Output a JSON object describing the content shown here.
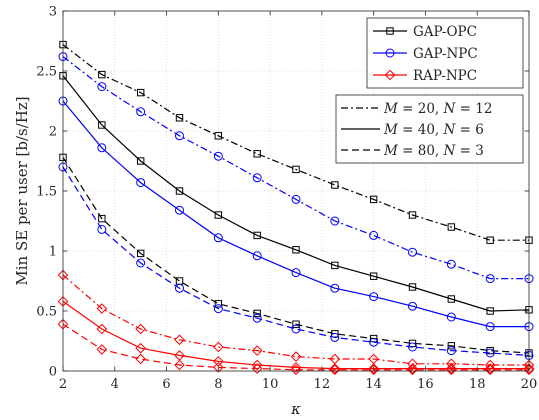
{
  "chart_data": {
    "type": "line",
    "title": "",
    "xlabel": "κ",
    "ylabel": "Min SE per user [b/s/Hz]",
    "xlim": [
      2,
      20
    ],
    "ylim": [
      0,
      3
    ],
    "xticks": [
      2,
      4,
      6,
      8,
      10,
      12,
      14,
      16,
      18,
      20
    ],
    "yticks": [
      0,
      0.5,
      1,
      1.5,
      2,
      2.5,
      3
    ],
    "xtick_labels": [
      "2",
      "4",
      "6",
      "8",
      "10",
      "12",
      "14",
      "16",
      "18",
      "20"
    ],
    "ytick_labels": [
      "0",
      "0.5",
      "1",
      "1.5",
      "2",
      "2.5",
      "3"
    ],
    "grid": true,
    "x": [
      2,
      3.5,
      5,
      6.5,
      8,
      9.5,
      11,
      12.5,
      14,
      15.5,
      17,
      18.5,
      20
    ],
    "schemes": [
      {
        "name": "GAP-OPC",
        "color": "#000000",
        "marker": "square"
      },
      {
        "name": "GAP-NPC",
        "color": "#0000ff",
        "marker": "circle"
      },
      {
        "name": "RAP-NPC",
        "color": "#ff0000",
        "marker": "diamond"
      }
    ],
    "configs": [
      {
        "name": "M = 20, N = 12",
        "m": "20",
        "n": "12",
        "dash": "dashdot"
      },
      {
        "name": "M = 40, N = 6",
        "m": "40",
        "n": "6",
        "dash": "solid"
      },
      {
        "name": "M = 80, N = 3",
        "m": "80",
        "n": "3",
        "dash": "dashed"
      }
    ],
    "legend_placement": "top-right",
    "series": [
      {
        "scheme": "GAP-OPC",
        "config": "M = 20, N = 12",
        "values": [
          2.72,
          2.47,
          2.32,
          2.11,
          1.96,
          1.81,
          1.68,
          1.55,
          1.43,
          1.3,
          1.2,
          1.09,
          1.09
        ]
      },
      {
        "scheme": "GAP-OPC",
        "config": "M = 40, N = 6",
        "values": [
          2.46,
          2.05,
          1.75,
          1.5,
          1.3,
          1.13,
          1.01,
          0.88,
          0.79,
          0.7,
          0.6,
          0.5,
          0.51
        ]
      },
      {
        "scheme": "GAP-OPC",
        "config": "M = 80, N = 3",
        "values": [
          1.78,
          1.27,
          0.98,
          0.75,
          0.56,
          0.48,
          0.39,
          0.31,
          0.27,
          0.23,
          0.21,
          0.17,
          0.15
        ]
      },
      {
        "scheme": "GAP-NPC",
        "config": "M = 20, N = 12",
        "values": [
          2.62,
          2.37,
          2.16,
          1.96,
          1.79,
          1.61,
          1.43,
          1.25,
          1.13,
          0.99,
          0.89,
          0.77,
          0.77
        ]
      },
      {
        "scheme": "GAP-NPC",
        "config": "M = 40, N = 6",
        "values": [
          2.25,
          1.86,
          1.57,
          1.34,
          1.11,
          0.96,
          0.82,
          0.69,
          0.62,
          0.54,
          0.45,
          0.37,
          0.37
        ]
      },
      {
        "scheme": "GAP-NPC",
        "config": "M = 80, N = 3",
        "values": [
          1.7,
          1.18,
          0.9,
          0.69,
          0.52,
          0.44,
          0.35,
          0.28,
          0.24,
          0.2,
          0.17,
          0.15,
          0.13
        ]
      },
      {
        "scheme": "RAP-NPC",
        "config": "M = 20, N = 12",
        "values": [
          0.8,
          0.52,
          0.35,
          0.26,
          0.2,
          0.17,
          0.12,
          0.1,
          0.1,
          0.06,
          0.06,
          0.05,
          0.05
        ]
      },
      {
        "scheme": "RAP-NPC",
        "config": "M = 40, N = 6",
        "values": [
          0.58,
          0.35,
          0.19,
          0.13,
          0.08,
          0.05,
          0.03,
          0.02,
          0.02,
          0.02,
          0.02,
          0.02,
          0.02
        ]
      },
      {
        "scheme": "RAP-NPC",
        "config": "M = 80, N = 3",
        "values": [
          0.39,
          0.18,
          0.1,
          0.05,
          0.03,
          0.02,
          0.01,
          0.01,
          0.01,
          0.01,
          0.01,
          0.01,
          0.01
        ]
      }
    ]
  }
}
